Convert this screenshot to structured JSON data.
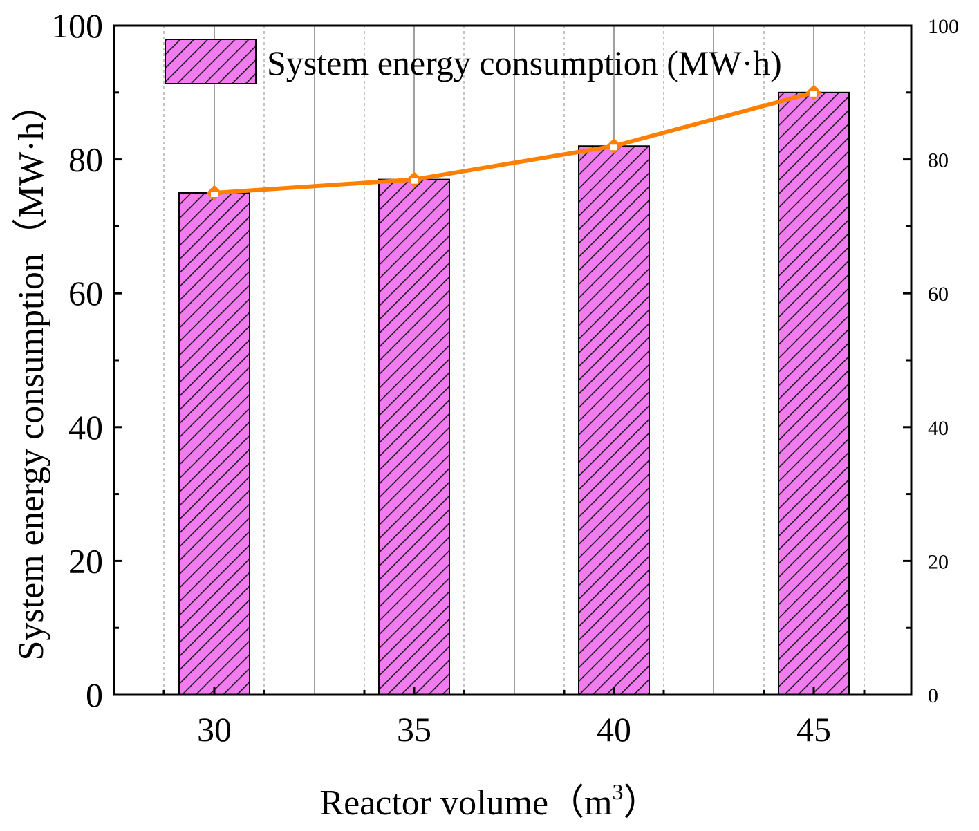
{
  "chart_data": {
    "type": "bar",
    "categories": [
      "30",
      "35",
      "40",
      "45"
    ],
    "series": [
      {
        "name": "System energy consumption (MW·h)",
        "kind": "bar",
        "values": [
          75,
          77,
          82,
          90
        ]
      },
      {
        "kind": "line",
        "values": [
          75,
          77,
          82,
          90
        ]
      }
    ],
    "xlabel": "Reactor volume（m3）",
    "xlabel_main": "Reactor volume（m",
    "xlabel_sup": "3",
    "xlabel_tail": "）",
    "ylabel": "System energy consumption（MW·h）",
    "ylim": [
      0,
      100
    ],
    "y_ticks": [
      0,
      20,
      40,
      60,
      80,
      100
    ],
    "y2lim": [
      0,
      100
    ],
    "y2_ticks": [
      0,
      20,
      40,
      60,
      80,
      100
    ],
    "legend": {
      "label": "System energy consumption (MW·h)",
      "position": "top"
    },
    "grid": {
      "vertical": true,
      "horizontal": false
    },
    "colors": {
      "bar_fill": "#f07cf0",
      "hatch": "#1a1a1a",
      "line": "#ff8000",
      "marker_fill": "#ffffff",
      "axis": "#000000",
      "grid_solid": "#808080",
      "grid_dashed": "#b0b0b0"
    }
  }
}
